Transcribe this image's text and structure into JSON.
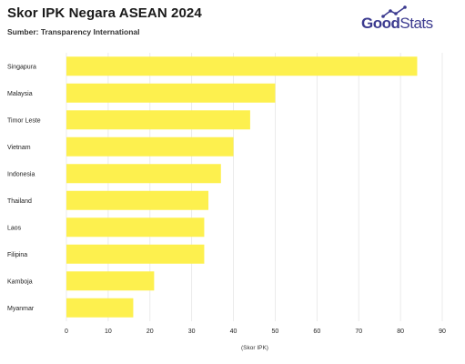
{
  "title": "Skor IPK Negara ASEAN 2024",
  "subtitle": "Sumber: Transparency International",
  "logo": {
    "good": "Good",
    "stats": "Stats"
  },
  "colors": {
    "bar": "#fdf04e",
    "grid": "#e6e6e6",
    "logo": "#3b3a8f"
  },
  "chart_data": {
    "type": "bar",
    "orientation": "horizontal",
    "categories": [
      "Singapura",
      "Malaysia",
      "Timor Leste",
      "Vietnam",
      "Indonesia",
      "Thailand",
      "Laos",
      "Filipina",
      "Kamboja",
      "Myanmar"
    ],
    "values": [
      84,
      50,
      44,
      40,
      37,
      34,
      33,
      33,
      21,
      16
    ],
    "xlabel": "(Skor IPK)",
    "xlim": [
      0,
      90
    ],
    "xticks": [
      0,
      10,
      20,
      30,
      40,
      50,
      60,
      70,
      80,
      90
    ],
    "grid": true
  }
}
